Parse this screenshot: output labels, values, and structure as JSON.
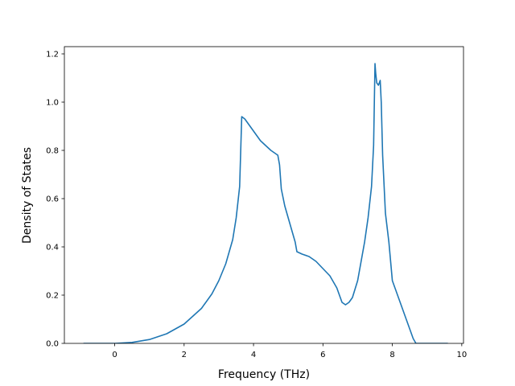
{
  "chart_data": {
    "type": "line",
    "title": "",
    "xlabel": "Frequency (THz)",
    "ylabel": "Density of States",
    "xlim": [
      -1.45,
      10.05
    ],
    "ylim": [
      0.0,
      1.23
    ],
    "xticks": [
      0,
      2,
      4,
      6,
      8,
      10
    ],
    "xtick_labels": [
      "0",
      "2",
      "4",
      "6",
      "8",
      "10"
    ],
    "yticks": [
      0.0,
      0.2,
      0.4,
      0.6,
      0.8,
      1.0,
      1.2
    ],
    "ytick_labels": [
      "0.0",
      "0.2",
      "0.4",
      "0.6",
      "0.8",
      "1.0",
      "1.2"
    ],
    "grid": false,
    "legend": false,
    "series": [
      {
        "color": "#1f77b4",
        "x": [
          -0.9,
          -0.5,
          0.0,
          0.5,
          1.0,
          1.5,
          2.0,
          2.5,
          2.8,
          3.0,
          3.2,
          3.4,
          3.5,
          3.6,
          3.66,
          3.75,
          3.9,
          4.2,
          4.5,
          4.7,
          4.75,
          4.8,
          4.9,
          5.0,
          5.1,
          5.2,
          5.25,
          5.4,
          5.6,
          5.8,
          6.0,
          6.2,
          6.4,
          6.55,
          6.65,
          6.75,
          6.85,
          7.0,
          7.1,
          7.2,
          7.3,
          7.4,
          7.46,
          7.5,
          7.52,
          7.55,
          7.6,
          7.65,
          7.68,
          7.72,
          7.8,
          7.9,
          8.0,
          8.1,
          8.2,
          8.3,
          8.4,
          8.5,
          8.6,
          8.68,
          8.72,
          9.0,
          9.3,
          9.6
        ],
        "y": [
          0.0,
          0.0,
          0.0,
          0.004,
          0.016,
          0.04,
          0.08,
          0.145,
          0.205,
          0.26,
          0.33,
          0.43,
          0.52,
          0.65,
          0.94,
          0.93,
          0.9,
          0.84,
          0.8,
          0.78,
          0.74,
          0.64,
          0.57,
          0.52,
          0.47,
          0.42,
          0.38,
          0.37,
          0.36,
          0.34,
          0.31,
          0.28,
          0.23,
          0.17,
          0.16,
          0.17,
          0.19,
          0.26,
          0.34,
          0.42,
          0.52,
          0.65,
          0.82,
          1.16,
          1.12,
          1.08,
          1.07,
          1.09,
          1.0,
          0.78,
          0.54,
          0.42,
          0.26,
          0.22,
          0.18,
          0.14,
          0.1,
          0.06,
          0.02,
          0.0,
          0.0,
          0.0,
          0.0,
          0.0
        ]
      }
    ]
  }
}
